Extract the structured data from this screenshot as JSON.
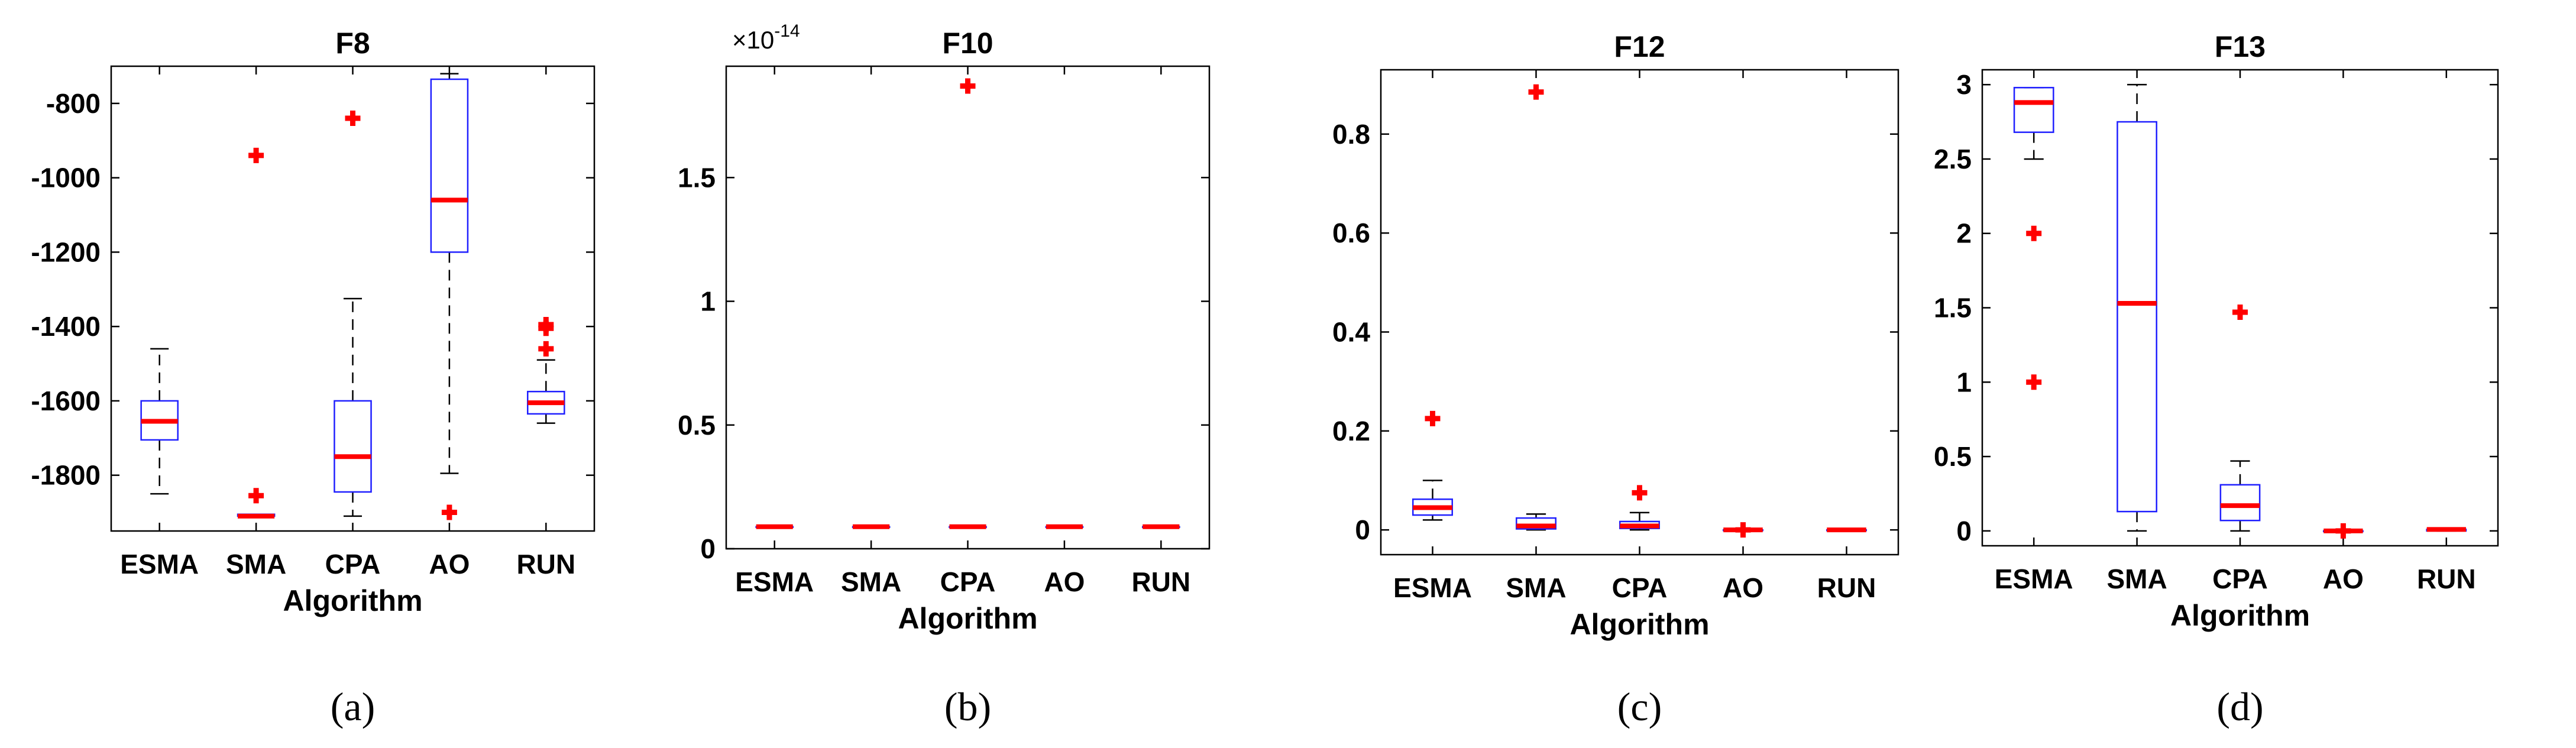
{
  "chart_data": [
    {
      "type": "box",
      "title": "F8",
      "subcaption": "(a)",
      "xlabel": "Algorithm",
      "ylabel": "",
      "categories": [
        "ESMA",
        "SMA",
        "CPA",
        "AO",
        "RUN"
      ],
      "ylim": [
        -1950,
        -700
      ],
      "yticks": [
        -1800,
        -1600,
        -1400,
        -1200,
        -1000,
        -800
      ],
      "ytick_labels": [
        "-1800",
        "-1600",
        "-1400",
        "-1200",
        "-1000",
        "-800"
      ],
      "boxes": [
        {
          "whisker_low": -1850,
          "q1": -1705,
          "median": -1655,
          "q3": -1600,
          "whisker_high": -1460,
          "outliers": []
        },
        {
          "whisker_low": -1910,
          "q1": -1910,
          "median": -1910,
          "q3": -1905,
          "whisker_high": -1905,
          "outliers": [
            -940,
            -1855
          ]
        },
        {
          "whisker_low": -1910,
          "q1": -1845,
          "median": -1750,
          "q3": -1600,
          "whisker_high": -1325,
          "outliers": [
            -840
          ]
        },
        {
          "whisker_low": -1795,
          "q1": -1200,
          "median": -1060,
          "q3": -735,
          "whisker_high": -720,
          "outliers": [
            -1900
          ]
        },
        {
          "whisker_low": -1660,
          "q1": -1635,
          "median": -1605,
          "q3": -1575,
          "whisker_high": -1490,
          "outliers": [
            -1395,
            -1405,
            -1460
          ]
        }
      ]
    },
    {
      "type": "box",
      "title": "F10",
      "subcaption": "(b)",
      "xlabel": "Algorithm",
      "ylabel": "",
      "axis_multiplier": {
        "base": "×10",
        "exponent": "-14"
      },
      "categories": [
        "ESMA",
        "SMA",
        "CPA",
        "AO",
        "RUN"
      ],
      "ylim": [
        0,
        1.95
      ],
      "yticks": [
        0,
        0.5,
        1,
        1.5
      ],
      "ytick_labels": [
        "0",
        "0.5",
        "1",
        "1.5"
      ],
      "boxes": [
        {
          "whisker_low": 0.089,
          "q1": 0.089,
          "median": 0.089,
          "q3": 0.089,
          "whisker_high": 0.089,
          "outliers": []
        },
        {
          "whisker_low": 0.089,
          "q1": 0.089,
          "median": 0.089,
          "q3": 0.089,
          "whisker_high": 0.089,
          "outliers": []
        },
        {
          "whisker_low": 0.089,
          "q1": 0.089,
          "median": 0.089,
          "q3": 0.089,
          "whisker_high": 0.089,
          "outliers": [
            1.87
          ]
        },
        {
          "whisker_low": 0.089,
          "q1": 0.089,
          "median": 0.089,
          "q3": 0.089,
          "whisker_high": 0.089,
          "outliers": []
        },
        {
          "whisker_low": 0.089,
          "q1": 0.089,
          "median": 0.089,
          "q3": 0.089,
          "whisker_high": 0.089,
          "outliers": []
        }
      ]
    },
    {
      "type": "box",
      "title": "F12",
      "subcaption": "(c)",
      "xlabel": "Algorithm",
      "ylabel": "",
      "categories": [
        "ESMA",
        "SMA",
        "CPA",
        "AO",
        "RUN"
      ],
      "ylim": [
        -0.05,
        0.93
      ],
      "yticks": [
        0,
        0.2,
        0.4,
        0.6,
        0.8
      ],
      "ytick_labels": [
        "0",
        "0.2",
        "0.4",
        "0.6",
        "0.8"
      ],
      "boxes": [
        {
          "whisker_low": 0.02,
          "q1": 0.03,
          "median": 0.045,
          "q3": 0.062,
          "whisker_high": 0.1,
          "outliers": [
            0.225
          ]
        },
        {
          "whisker_low": 0.0,
          "q1": 0.002,
          "median": 0.008,
          "q3": 0.024,
          "whisker_high": 0.032,
          "outliers": [
            0.885
          ]
        },
        {
          "whisker_low": 0.0,
          "q1": 0.003,
          "median": 0.008,
          "q3": 0.017,
          "whisker_high": 0.035,
          "outliers": [
            0.075
          ]
        },
        {
          "whisker_low": 0.0,
          "q1": 0.0,
          "median": 0.0,
          "q3": 0.0,
          "whisker_high": 0.0,
          "outliers": [
            0.0
          ]
        },
        {
          "whisker_low": 0.0,
          "q1": 0.0,
          "median": 0.0,
          "q3": 0.0,
          "whisker_high": 0.0,
          "outliers": []
        }
      ]
    },
    {
      "type": "box",
      "title": "F13",
      "subcaption": "(d)",
      "xlabel": "Algorithm",
      "ylabel": "",
      "categories": [
        "ESMA",
        "SMA",
        "CPA",
        "AO",
        "RUN"
      ],
      "ylim": [
        -0.1,
        3.1
      ],
      "yticks": [
        0,
        0.5,
        1,
        1.5,
        2,
        2.5,
        3
      ],
      "ytick_labels": [
        "0",
        "0.5",
        "1",
        "1.5",
        "2",
        "2.5",
        "3"
      ],
      "boxes": [
        {
          "whisker_low": 2.5,
          "q1": 2.68,
          "median": 2.88,
          "q3": 2.98,
          "whisker_high": 2.98,
          "outliers": [
            2.0,
            1.0
          ]
        },
        {
          "whisker_low": 0.0,
          "q1": 0.13,
          "median": 1.53,
          "q3": 2.75,
          "whisker_high": 3.0,
          "outliers": []
        },
        {
          "whisker_low": 0.0,
          "q1": 0.07,
          "median": 0.17,
          "q3": 0.31,
          "whisker_high": 0.47,
          "outliers": [
            1.47
          ]
        },
        {
          "whisker_low": 0.0,
          "q1": 0.0,
          "median": 0.0,
          "q3": 0.0,
          "whisker_high": 0.0,
          "outliers": [
            0.0
          ]
        },
        {
          "whisker_low": 0.0,
          "q1": 0.0,
          "median": 0.01,
          "q3": 0.01,
          "whisker_high": 0.01,
          "outliers": []
        }
      ]
    }
  ],
  "colors": {
    "box": "#1f1fff",
    "median": "#ff0000",
    "outlier": "#ff0000",
    "whisker": "#000000",
    "axis": "#000000"
  }
}
